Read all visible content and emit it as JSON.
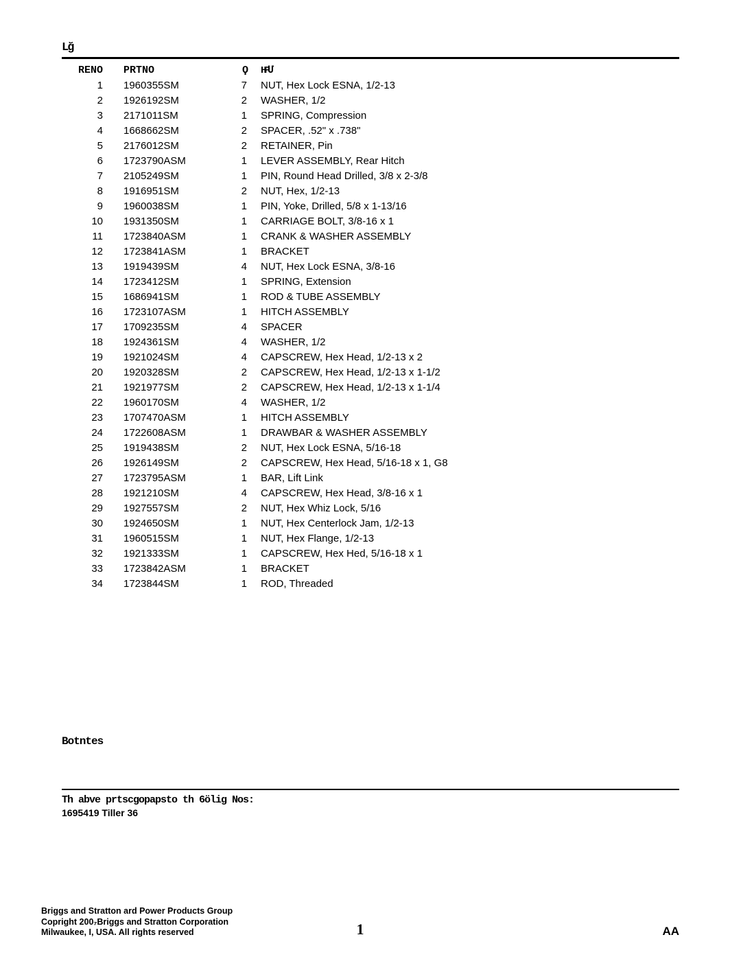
{
  "title_above_rule": "Lğ",
  "table": {
    "headers": {
      "ref": "RENO",
      "part": "PRTNO",
      "qty": "Ϙ",
      "desc": "HPՄ"
    },
    "rows": [
      {
        "ref": "1",
        "part": "1960355SM",
        "qty": "7",
        "desc": "NUT, Hex Lock ESNA, 1/2-13"
      },
      {
        "ref": "2",
        "part": "1926192SM",
        "qty": "2",
        "desc": "WASHER, 1/2"
      },
      {
        "ref": "3",
        "part": "2171011SM",
        "qty": "1",
        "desc": "SPRING, Compression"
      },
      {
        "ref": "4",
        "part": "1668662SM",
        "qty": "2",
        "desc": "SPACER, .52\" x .738\""
      },
      {
        "ref": "5",
        "part": "2176012SM",
        "qty": "2",
        "desc": "RETAINER, Pin"
      },
      {
        "ref": "6",
        "part": "1723790ASM",
        "qty": "1",
        "desc": "LEVER ASSEMBLY, Rear Hitch"
      },
      {
        "ref": "7",
        "part": "2105249SM",
        "qty": "1",
        "desc": "PIN, Round Head Drilled,  3/8 x 2-3/8"
      },
      {
        "ref": "8",
        "part": "1916951SM",
        "qty": "2",
        "desc": "NUT, Hex, 1/2-13"
      },
      {
        "ref": "9",
        "part": "1960038SM",
        "qty": "1",
        "desc": "PIN, Yoke, Drilled, 5/8 x 1-13/16"
      },
      {
        "ref": "10",
        "part": "1931350SM",
        "qty": "1",
        "desc": "CARRIAGE BOLT, 3/8-16 x 1"
      },
      {
        "ref": "11",
        "part": "1723840ASM",
        "qty": "1",
        "desc": "CRANK & WASHER ASSEMBLY"
      },
      {
        "ref": "12",
        "part": "1723841ASM",
        "qty": "1",
        "desc": "BRACKET"
      },
      {
        "ref": "13",
        "part": "1919439SM",
        "qty": "4",
        "desc": "NUT, Hex Lock ESNA, 3/8-16"
      },
      {
        "ref": "14",
        "part": "1723412SM",
        "qty": "1",
        "desc": "SPRING, Extension"
      },
      {
        "ref": "15",
        "part": "1686941SM",
        "qty": "1",
        "desc": "ROD & TUBE ASSEMBLY"
      },
      {
        "ref": "16",
        "part": "1723107ASM",
        "qty": "1",
        "desc": "HITCH ASSEMBLY"
      },
      {
        "ref": "17",
        "part": "1709235SM",
        "qty": "4",
        "desc": "SPACER"
      },
      {
        "ref": "18",
        "part": "1924361SM",
        "qty": "4",
        "desc": "WASHER, 1/2"
      },
      {
        "ref": "19",
        "part": "1921024SM",
        "qty": "4",
        "desc": "CAPSCREW, Hex Head, 1/2-13 x 2"
      },
      {
        "ref": "20",
        "part": "1920328SM",
        "qty": "2",
        "desc": "CAPSCREW, Hex Head, 1/2-13 x 1-1/2"
      },
      {
        "ref": "21",
        "part": "1921977SM",
        "qty": "2",
        "desc": "CAPSCREW, Hex Head, 1/2-13 x 1-1/4"
      },
      {
        "ref": "22",
        "part": "1960170SM",
        "qty": "4",
        "desc": "WASHER, 1/2"
      },
      {
        "ref": "23",
        "part": "1707470ASM",
        "qty": "1",
        "desc": "HITCH ASSEMBLY"
      },
      {
        "ref": "24",
        "part": "1722608ASM",
        "qty": "1",
        "desc": "DRAWBAR & WASHER ASSEMBLY"
      },
      {
        "ref": "25",
        "part": "1919438SM",
        "qty": "2",
        "desc": "NUT, Hex Lock ESNA, 5/16-18"
      },
      {
        "ref": "26",
        "part": "1926149SM",
        "qty": "2",
        "desc": "CAPSCREW, Hex Head, 5/16-18 x 1, G8"
      },
      {
        "ref": "27",
        "part": "1723795ASM",
        "qty": "1",
        "desc": "BAR, Lift Link"
      },
      {
        "ref": "28",
        "part": "1921210SM",
        "qty": "4",
        "desc": "CAPSCREW, Hex Head, 3/8-16 x 1"
      },
      {
        "ref": "29",
        "part": "1927557SM",
        "qty": "2",
        "desc": "NUT, Hex Whiz Lock, 5/16"
      },
      {
        "ref": "30",
        "part": "1924650SM",
        "qty": "1",
        "desc": "NUT, Hex Centerlock Jam, 1/2-13"
      },
      {
        "ref": "31",
        "part": "1960515SM",
        "qty": "1",
        "desc": "NUT, Hex Flange, 1/2-13"
      },
      {
        "ref": "32",
        "part": "1921333SM",
        "qty": "1",
        "desc": "CAPSCREW, Hex Hed, 5/16-18 x 1"
      },
      {
        "ref": "33",
        "part": "1723842ASM",
        "qty": "1",
        "desc": "BRACKET"
      },
      {
        "ref": "34",
        "part": "1723844SM",
        "qty": "1",
        "desc": "ROD, Threaded"
      }
    ]
  },
  "footnotes_label": "Botntes",
  "applicable_line": "Th abve prtscgopapsto th 6ölig Nos:",
  "applicable_model": "1695419  Tiller 36",
  "footer": {
    "line1": "Briggs and Stratton ard Power Products Group",
    "line2": "Copright      200₇Briggs and Stratton Corporation",
    "line3": "Milwaukee, I, USA. All rights reserved",
    "page_number": "1",
    "right": "AA"
  }
}
